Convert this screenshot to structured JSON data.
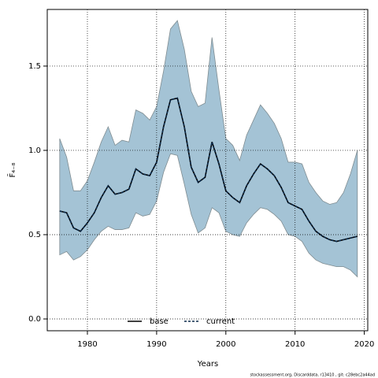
{
  "chart_data": {
    "type": "line",
    "x_label": "Years",
    "y_label": "F̄₄₋₈",
    "footnote": "stockassessment.org, Discarddata, r13410 , git: c28ebc2a44ad",
    "x": [
      1976,
      1977,
      1978,
      1979,
      1980,
      1981,
      1982,
      1983,
      1984,
      1985,
      1986,
      1987,
      1988,
      1989,
      1990,
      1991,
      1992,
      1993,
      1994,
      1995,
      1996,
      1997,
      1998,
      1999,
      2000,
      2001,
      2002,
      2003,
      2004,
      2005,
      2006,
      2007,
      2008,
      2009,
      2010,
      2011,
      2012,
      2013,
      2014,
      2015,
      2016,
      2017,
      2018,
      2019
    ],
    "band": {
      "color": "#a4c3d5",
      "edge": "#7f8c91",
      "upper": [
        1.07,
        0.96,
        0.76,
        0.76,
        0.82,
        0.93,
        1.05,
        1.14,
        1.03,
        1.06,
        1.05,
        1.24,
        1.22,
        1.18,
        1.26,
        1.47,
        1.72,
        1.77,
        1.6,
        1.35,
        1.26,
        1.28,
        1.67,
        1.36,
        1.07,
        1.03,
        0.94,
        1.09,
        1.18,
        1.27,
        1.22,
        1.16,
        1.07,
        0.93,
        0.93,
        0.92,
        0.81,
        0.75,
        0.7,
        0.68,
        0.69,
        0.75,
        0.86,
        1.0
      ],
      "lower": [
        0.38,
        0.4,
        0.35,
        0.37,
        0.41,
        0.47,
        0.52,
        0.55,
        0.53,
        0.53,
        0.54,
        0.63,
        0.61,
        0.62,
        0.7,
        0.87,
        0.98,
        0.97,
        0.8,
        0.62,
        0.51,
        0.54,
        0.66,
        0.63,
        0.52,
        0.5,
        0.49,
        0.57,
        0.62,
        0.66,
        0.65,
        0.62,
        0.58,
        0.5,
        0.49,
        0.46,
        0.39,
        0.35,
        0.33,
        0.32,
        0.31,
        0.31,
        0.29,
        0.25
      ]
    },
    "series": [
      {
        "name": "base",
        "color": "#000000",
        "dash": false,
        "values": [
          0.64,
          0.63,
          0.54,
          0.52,
          0.57,
          0.63,
          0.72,
          0.79,
          0.74,
          0.75,
          0.77,
          0.89,
          0.86,
          0.85,
          0.93,
          1.14,
          1.3,
          1.31,
          1.14,
          0.9,
          0.81,
          0.84,
          1.05,
          0.92,
          0.76,
          0.72,
          0.69,
          0.79,
          0.86,
          0.92,
          0.89,
          0.85,
          0.78,
          0.69,
          0.67,
          0.65,
          0.58,
          0.52,
          0.49,
          0.47,
          0.46,
          0.47,
          0.48,
          0.49
        ]
      },
      {
        "name": "current",
        "color": "#0b2a4a",
        "dash": true,
        "values": [
          0.64,
          0.63,
          0.54,
          0.52,
          0.57,
          0.63,
          0.72,
          0.79,
          0.74,
          0.75,
          0.77,
          0.89,
          0.86,
          0.85,
          0.93,
          1.14,
          1.3,
          1.31,
          1.14,
          0.9,
          0.81,
          0.84,
          1.05,
          0.92,
          0.76,
          0.72,
          0.69,
          0.79,
          0.86,
          0.92,
          0.89,
          0.85,
          0.78,
          0.69,
          0.67,
          0.65,
          0.58,
          0.52,
          0.49,
          0.47,
          0.46,
          0.47,
          0.48,
          0.49
        ]
      }
    ],
    "xlim": [
      1974.2,
      2020.5
    ],
    "ylim": [
      -0.07,
      1.836
    ],
    "xticks": [
      1980,
      1990,
      2000,
      2010,
      2020
    ],
    "yticks": [
      {
        "value": 0,
        "label": "0.0"
      },
      {
        "value": 0.5,
        "label": "0.5"
      },
      {
        "value": 1,
        "label": "1.0"
      },
      {
        "value": 1.5,
        "label": "1.5"
      }
    ],
    "grid": true,
    "legend": "bottom"
  }
}
